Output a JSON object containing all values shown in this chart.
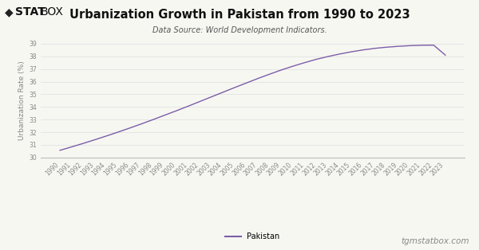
{
  "title": "Urbanization Growth in Pakistan from 1990 to 2023",
  "subtitle": "Data Source: World Development Indicators.",
  "ylabel": "Urbanization Rate (%)",
  "line_color": "#7B5EA7",
  "background_color": "#f7f7f2",
  "plot_bg_color": "#f7f7f2",
  "years": [
    1990,
    1991,
    1992,
    1993,
    1994,
    1995,
    1996,
    1997,
    1998,
    1999,
    2000,
    2001,
    2002,
    2003,
    2004,
    2005,
    2006,
    2007,
    2008,
    2009,
    2010,
    2011,
    2012,
    2013,
    2014,
    2015,
    2016,
    2017,
    2018,
    2019,
    2020,
    2021,
    2022,
    2023
  ],
  "values": [
    30.57,
    30.84,
    31.12,
    31.41,
    31.71,
    32.02,
    32.34,
    32.67,
    33.01,
    33.36,
    33.71,
    34.07,
    34.44,
    34.81,
    35.18,
    35.55,
    35.91,
    36.27,
    36.61,
    36.94,
    37.24,
    37.52,
    37.78,
    38.0,
    38.2,
    38.37,
    38.52,
    38.64,
    38.73,
    38.8,
    38.85,
    38.88,
    38.89,
    38.1
  ],
  "ylim": [
    30,
    39
  ],
  "yticks": [
    30,
    31,
    32,
    33,
    34,
    35,
    36,
    37,
    38,
    39
  ],
  "legend_label": "Pakistan",
  "footer_text": "tgmstatbox.com",
  "title_fontsize": 10.5,
  "subtitle_fontsize": 7,
  "axis_label_fontsize": 6.5,
  "tick_fontsize": 5.5,
  "legend_fontsize": 7,
  "footer_fontsize": 7.5,
  "logo_fontsize": 10,
  "grid_color": "#dddddd",
  "tick_color": "#888888",
  "title_color": "#111111",
  "subtitle_color": "#555555",
  "footer_color": "#888888"
}
